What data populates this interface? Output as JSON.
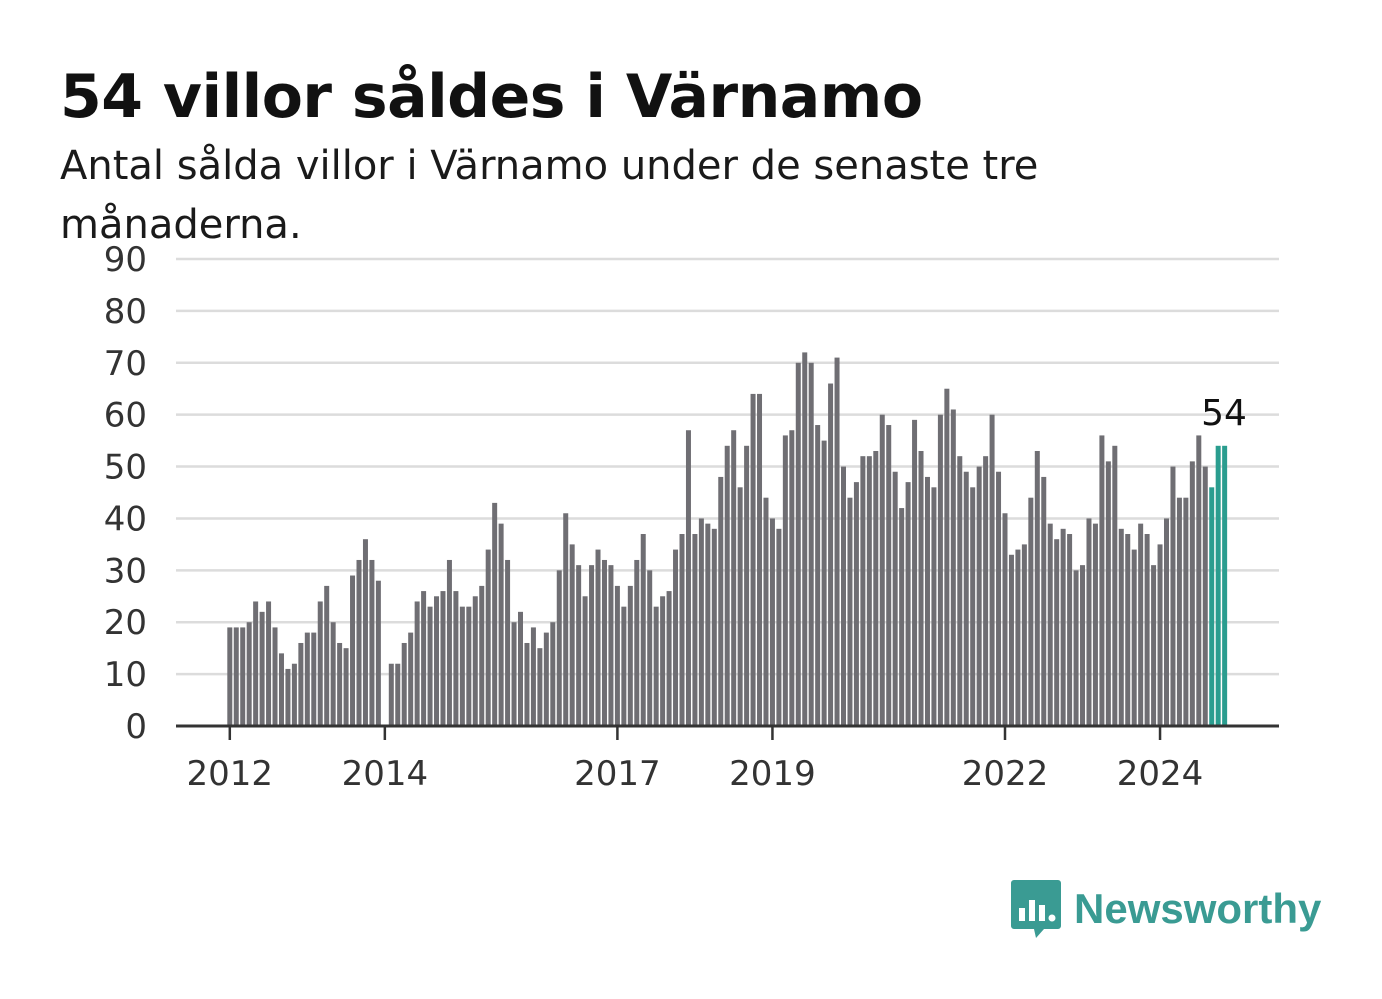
{
  "colors": {
    "bar": "#6f6e73",
    "highlight": "#2a9d8f",
    "grid": "#dcdcdc",
    "axis": "#333333",
    "brand": "#3a9b93"
  },
  "chart_data": {
    "type": "bar",
    "title": "54 villor såldes i Värnamo",
    "subtitle": "Antal sålda villor i Värnamo under de senaste tre månaderna.",
    "xlabel": "",
    "ylabel": "",
    "ylim": [
      0,
      90
    ],
    "y_ticks": [
      0,
      10,
      20,
      30,
      40,
      50,
      60,
      70,
      80,
      90
    ],
    "x_tick_labels": [
      {
        "label": "2012",
        "index": 0
      },
      {
        "label": "2014",
        "index": 24
      },
      {
        "label": "2017",
        "index": 60
      },
      {
        "label": "2019",
        "index": 84
      },
      {
        "label": "2022",
        "index": 120
      },
      {
        "label": "2024",
        "index": 144
      }
    ],
    "grid": true,
    "legend": "none",
    "highlight_annotation": "54",
    "series": [
      {
        "values": [
          19,
          19,
          19,
          20,
          24,
          22,
          24,
          19,
          14,
          11,
          12,
          16,
          18,
          18,
          24,
          27,
          20,
          16,
          15,
          29,
          32,
          36,
          32,
          28,
          null,
          12,
          12,
          16,
          18,
          24,
          26,
          23,
          25,
          26,
          32,
          26,
          23,
          23,
          25,
          27,
          34,
          43,
          39,
          32,
          20,
          22,
          16,
          19,
          15,
          18,
          20,
          30,
          41,
          35,
          31,
          25,
          31,
          34,
          32,
          31,
          27,
          23,
          27,
          32,
          37,
          30,
          23,
          25,
          26,
          34,
          37,
          57,
          37,
          40,
          39,
          38,
          48,
          54,
          57,
          46,
          54,
          64,
          64,
          44,
          40,
          38,
          56,
          57,
          70,
          72,
          70,
          58,
          55,
          66,
          71,
          50,
          44,
          47,
          52,
          52,
          53,
          60,
          58,
          49,
          42,
          47,
          59,
          53,
          48,
          46,
          60,
          65,
          61,
          52,
          49,
          46,
          50,
          52,
          60,
          49,
          41,
          33,
          34,
          35,
          44,
          53,
          48,
          39,
          36,
          38,
          37,
          30,
          31,
          40,
          39,
          56,
          51,
          54,
          38,
          37,
          34,
          39,
          37,
          31,
          35,
          40,
          50,
          44,
          44,
          51,
          56,
          50,
          46,
          54,
          54
        ],
        "highlight_from_index": 152
      }
    ]
  },
  "brand": {
    "name": "Newsworthy",
    "icon": "newsworthy-logo-icon"
  }
}
